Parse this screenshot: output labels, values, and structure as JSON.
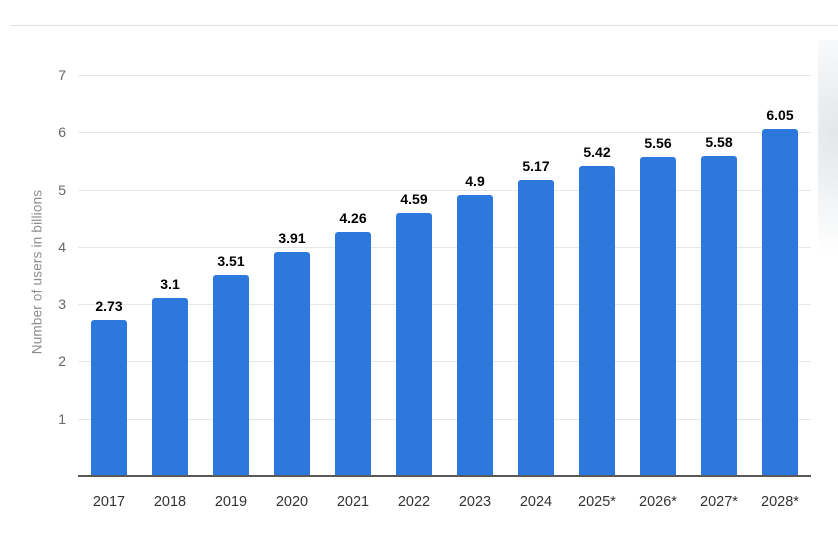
{
  "chart_data": {
    "type": "bar",
    "title": "",
    "xlabel": "",
    "ylabel": "Number of users in billions",
    "categories": [
      "2017",
      "2018",
      "2019",
      "2020",
      "2021",
      "2022",
      "2023",
      "2024",
      "2025*",
      "2026*",
      "2027*",
      "2028*"
    ],
    "values": [
      2.73,
      3.1,
      3.51,
      3.91,
      4.26,
      4.59,
      4.9,
      5.17,
      5.42,
      5.56,
      5.58,
      6.05
    ],
    "value_labels": [
      "2.73",
      "3.1",
      "3.51",
      "3.91",
      "4.26",
      "4.59",
      "4.9",
      "5.17",
      "5.42",
      "5.56",
      "5.58",
      "6.05"
    ],
    "ylim": [
      0,
      7
    ],
    "yticks": [
      1,
      2,
      3,
      4,
      5,
      6,
      7
    ],
    "grid": true,
    "legend": "none",
    "bar_color": "#2d78dc"
  }
}
